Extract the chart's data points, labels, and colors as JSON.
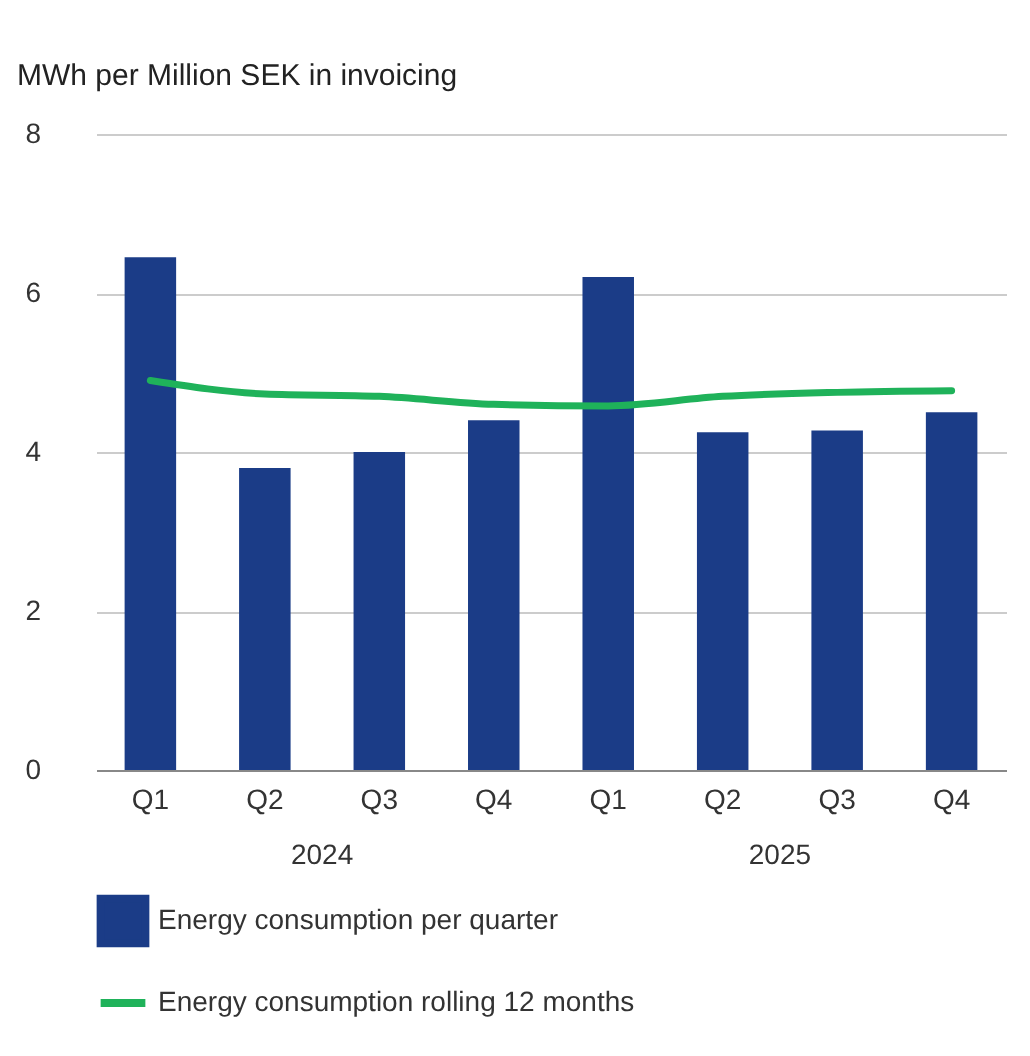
{
  "chart_data": {
    "type": "bar",
    "ylabel": "MWh per Million SEK in invoicing",
    "categories": [
      "Q1",
      "Q2",
      "Q3",
      "Q4",
      "Q1",
      "Q2",
      "Q3",
      "Q4"
    ],
    "series": [
      {
        "name": "Energy consumption per quarter",
        "color": "#1b3c87",
        "values": [
          6.45,
          3.8,
          4.0,
          4.4,
          6.2,
          4.25,
          4.27,
          4.5
        ]
      },
      {
        "name": "Energy consumption rolling 12 months",
        "type": "line",
        "color": "#1fb25a",
        "values": [
          4.9,
          4.73,
          4.7,
          4.6,
          4.58,
          4.7,
          4.75,
          4.77
        ]
      }
    ],
    "annotations": [
      "2024",
      "2025"
    ],
    "ylim": [
      0,
      8
    ],
    "yticks": [
      0,
      2,
      4,
      6,
      8
    ],
    "grid": "y",
    "legend": "bottom"
  }
}
